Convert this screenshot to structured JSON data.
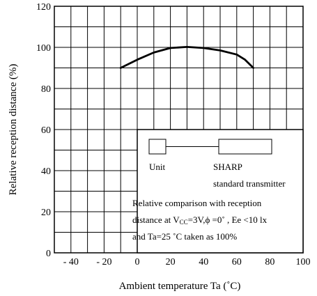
{
  "chart_data": {
    "type": "line",
    "xlabel": "Ambient temperature Ta (˚C)",
    "ylabel": "Relative reception distance (%)",
    "xlim": [
      -50,
      100
    ],
    "ylim": [
      0,
      120
    ],
    "grid": true,
    "x_ticks": [
      -40,
      -20,
      0,
      20,
      40,
      60,
      80,
      100
    ],
    "x_tick_labels": [
      "- 40",
      "- 20",
      "0",
      "20",
      "40",
      "60",
      "80",
      "100"
    ],
    "y_ticks": [
      0,
      20,
      40,
      60,
      80,
      100,
      120
    ],
    "y_tick_labels": [
      "0",
      "20",
      "40",
      "60",
      "80",
      "100",
      "120"
    ],
    "series": [
      {
        "x": [
          -10,
          0,
          10,
          20,
          30,
          40,
          50,
          60,
          65,
          70
        ],
        "y": [
          90,
          94,
          97.5,
          99.7,
          100.2,
          99.7,
          98.5,
          96.5,
          94,
          90
        ]
      }
    ],
    "legend": {
      "placement": "bottom-right",
      "unit_label": "Unit",
      "transmitter_label_line1": "SHARP",
      "transmitter_label_line2": "standard transmitter",
      "note_line1": "Relative comparison with reception",
      "note_line2_prefix": "distance at V",
      "note_line2_sub": "CC",
      "note_line2_suffix": "=3V,ϕ =0˚ , Ee <10 lx",
      "note_line3": "and Ta=25 ˚C taken as 100%"
    }
  }
}
